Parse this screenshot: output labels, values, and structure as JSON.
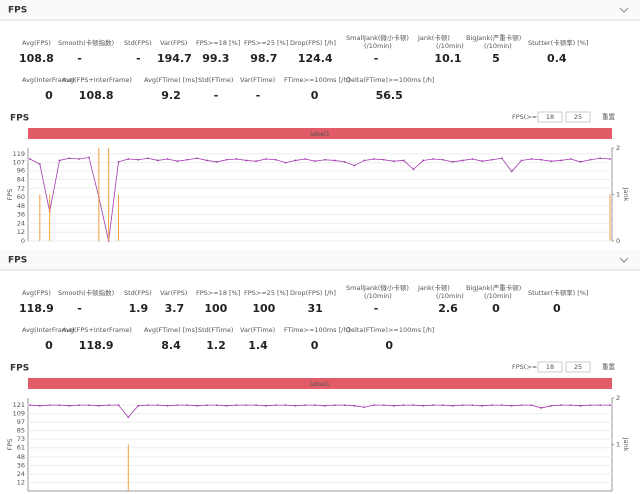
{
  "panels": [
    {
      "title": "FPS",
      "stats": [
        [
          {
            "label": "Avg(FPS)",
            "value": 108.8
          },
          {
            "label": "Smooth(卡顿指数)",
            "value": "-"
          },
          {
            "label": "Std(FPS)",
            "value": "-"
          },
          {
            "label": "Var(FPS)",
            "value": 194.7
          },
          {
            "label": "FPS>=18 [%]",
            "value": 99.3
          },
          {
            "label": "FPS>=25 [%]",
            "value": 98.7
          },
          {
            "label": "Drop(FPS) [/h]",
            "value": 124.4
          },
          {
            "label": [
              "SmallJank(微小卡顿)",
              "(/10min)"
            ],
            "value": "-"
          },
          {
            "label": [
              "Jank(卡顿)",
              "(/10min)"
            ],
            "value": 10.1
          },
          {
            "label": [
              "BigJank(严重卡顿)",
              "(/10min)"
            ],
            "value": 5
          },
          {
            "label": "Stutter(卡顿率) [%]",
            "value": 0.4
          }
        ],
        [
          {
            "label": "Avg(InterFrame)",
            "value": 0
          },
          {
            "label": "Avg(FPS+InterFrame)",
            "value": 108.8
          },
          {
            "label": "Avg(FTime) [ms]",
            "value": 9.2
          },
          {
            "label": "Std(FTime)",
            "value": "-"
          },
          {
            "label": "Var(FTime)",
            "value": "-"
          },
          {
            "label": "FTime>=100ms [/h]",
            "value": 0
          },
          {
            "label": "Delta(FTime)>=100ms [/h]",
            "value": 56.5
          }
        ]
      ],
      "chart": {
        "type": "line",
        "y_label": "FPS",
        "y2_label": "Jank",
        "fps_filter_label": "FPS(>=)",
        "fps_filter": [
          "18",
          "25"
        ],
        "reset": "重置",
        "band_label": "label1",
        "ylim": [
          0,
          127
        ],
        "yticks": [
          0,
          12,
          24,
          36,
          48,
          60,
          72,
          84,
          96,
          107,
          119
        ],
        "y2lim": [
          0,
          2
        ],
        "y2ticks": [
          0,
          1,
          2
        ],
        "series": [
          {
            "name": "FPS",
            "color": "#a23bb0",
            "values": [
              112,
              105,
              40,
              110,
              113,
              112,
              114,
              60,
              0,
              108,
              112,
              111,
              113,
              110,
              112,
              109,
              111,
              113,
              110,
              108,
              111,
              112,
              110,
              109,
              112,
              111,
              107,
              110,
              112,
              109,
              111,
              110,
              108,
              103,
              110,
              112,
              111,
              109,
              110,
              98,
              110,
              112,
              111,
              108,
              110,
              112,
              109,
              111,
              113,
              95,
              110,
              112,
              111,
              109,
              110,
              112,
              108,
              111,
              113,
              112
            ]
          },
          {
            "name": "Jank",
            "color": "#f0a040",
            "axis": "y2",
            "values": [
              0,
              1,
              1,
              0,
              0,
              0,
              0,
              2,
              2,
              1,
              0,
              0,
              0,
              0,
              0,
              0,
              0,
              0,
              0,
              0,
              0,
              0,
              0,
              0,
              0,
              0,
              0,
              0,
              0,
              0,
              0,
              0,
              0,
              0,
              0,
              0,
              0,
              0,
              0,
              0,
              0,
              0,
              0,
              0,
              0,
              0,
              0,
              0,
              0,
              0,
              0,
              0,
              0,
              0,
              0,
              0,
              0,
              0,
              0,
              1
            ]
          }
        ]
      }
    },
    {
      "title": "FPS",
      "stats": [
        [
          {
            "label": "Avg(FPS)",
            "value": 118.9
          },
          {
            "label": "Smooth(卡顿指数)",
            "value": "-"
          },
          {
            "label": "Std(FPS)",
            "value": 1.9
          },
          {
            "label": "Var(FPS)",
            "value": 3.7
          },
          {
            "label": "FPS>=18 [%]",
            "value": 100
          },
          {
            "label": "FPS>=25 [%]",
            "value": 100
          },
          {
            "label": "Drop(FPS) [/h]",
            "value": 31
          },
          {
            "label": [
              "SmallJank(微小卡顿)",
              "(/10min)"
            ],
            "value": "-"
          },
          {
            "label": [
              "Jank(卡顿)",
              "(/10min)"
            ],
            "value": 2.6
          },
          {
            "label": [
              "BigJank(严重卡顿)",
              "(/10min)"
            ],
            "value": 0
          },
          {
            "label": "Stutter(卡顿率) [%]",
            "value": 0
          }
        ],
        [
          {
            "label": "Avg(InterFrame)",
            "value": 0
          },
          {
            "label": "Avg(FPS+InterFrame)",
            "value": 118.9
          },
          {
            "label": "Avg(FTime) [ms]",
            "value": 8.4
          },
          {
            "label": "Std(FTime)",
            "value": 1.2
          },
          {
            "label": "Var(FTime)",
            "value": 1.4
          },
          {
            "label": "FTime>=100ms [/h]",
            "value": 0
          },
          {
            "label": "Delta(FTime)>=100ms [/h]",
            "value": 0
          }
        ]
      ],
      "chart": {
        "type": "line",
        "y_label": "FPS",
        "y2_label": "Jank",
        "fps_filter_label": "FPS(>=)",
        "fps_filter": [
          "18",
          "25"
        ],
        "reset": "重置",
        "band_label": "label1",
        "ylim": [
          0,
          131
        ],
        "yticks": [
          12,
          24,
          36,
          48,
          61,
          73,
          85,
          97,
          109,
          121
        ],
        "y2lim": [
          0,
          2
        ],
        "y2ticks": [
          1,
          2
        ],
        "series": [
          {
            "name": "FPS",
            "color": "#a23bb0",
            "values": [
              121,
              120,
              121,
              121,
              120,
              121,
              121,
              120,
              121,
              121,
              104,
              120,
              121,
              121,
              120,
              121,
              121,
              120,
              121,
              121,
              120,
              121,
              121,
              121,
              120,
              121,
              121,
              120,
              121,
              121,
              120,
              121,
              121,
              120,
              118,
              121,
              121,
              120,
              121,
              121,
              120,
              121,
              121,
              120,
              121,
              121,
              120,
              121,
              121,
              120,
              121,
              121,
              117,
              120,
              121,
              121,
              120,
              121,
              121,
              121
            ]
          },
          {
            "name": "Jank",
            "color": "#f0a040",
            "axis": "y2",
            "values": [
              0,
              0,
              0,
              0,
              0,
              0,
              0,
              0,
              0,
              0,
              1,
              0,
              0,
              0,
              0,
              0,
              0,
              0,
              0,
              0,
              0,
              0,
              0,
              0,
              0,
              0,
              0,
              0,
              0,
              0,
              0,
              0,
              0,
              0,
              0,
              0,
              0,
              0,
              0,
              0,
              0,
              0,
              0,
              0,
              0,
              0,
              0,
              0,
              0,
              0,
              0,
              0,
              0,
              0,
              0,
              0,
              0,
              0,
              0,
              0
            ]
          }
        ]
      }
    }
  ]
}
